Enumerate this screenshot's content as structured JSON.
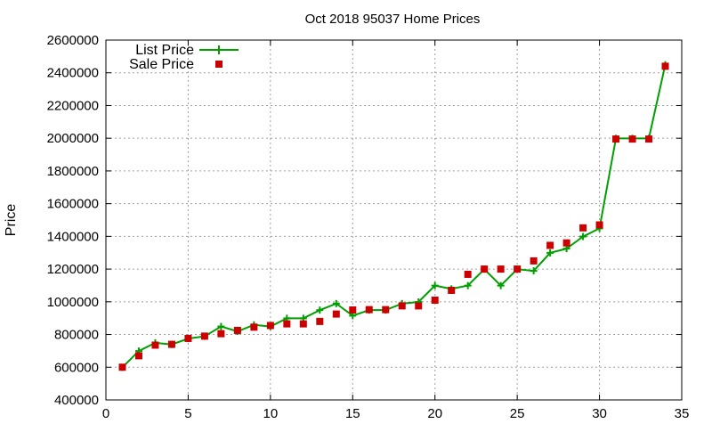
{
  "chart_data": {
    "type": "line",
    "title": "Oct 2018 95037 Home Prices",
    "xlabel": "",
    "ylabel": "Price",
    "xlim": [
      0,
      35
    ],
    "ylim": [
      400000,
      2600000
    ],
    "x_ticks": [
      0,
      5,
      10,
      15,
      20,
      25,
      30,
      35
    ],
    "y_ticks": [
      400000,
      600000,
      800000,
      1000000,
      1200000,
      1400000,
      1600000,
      1800000,
      2000000,
      2200000,
      2400000,
      2600000
    ],
    "grid": true,
    "legend_position": "top-left",
    "x": [
      1,
      2,
      3,
      4,
      5,
      6,
      7,
      8,
      9,
      10,
      11,
      12,
      13,
      14,
      15,
      16,
      17,
      18,
      19,
      20,
      21,
      22,
      23,
      24,
      25,
      26,
      27,
      28,
      29,
      30,
      31,
      32,
      33,
      34
    ],
    "series": [
      {
        "name": "List Price",
        "style": "line-with-plus-markers",
        "color": "#00a000",
        "values": [
          599000,
          699000,
          749000,
          739000,
          775000,
          789000,
          849000,
          819000,
          859000,
          849000,
          899000,
          899000,
          949000,
          989000,
          915000,
          949000,
          949000,
          989000,
          999000,
          1099000,
          1079000,
          1099000,
          1199000,
          1099000,
          1199000,
          1189000,
          1299000,
          1325000,
          1399000,
          1449000,
          1999000,
          1999000,
          1999000,
          2449000
        ]
      },
      {
        "name": "Sale Price",
        "style": "square-markers",
        "color": "#cc0000",
        "values": [
          600000,
          670000,
          735000,
          740000,
          776000,
          790000,
          805000,
          825000,
          845000,
          855000,
          865000,
          865000,
          880000,
          925000,
          950000,
          952000,
          952000,
          975000,
          975000,
          1010000,
          1070000,
          1168000,
          1200000,
          1200000,
          1200000,
          1250000,
          1345000,
          1360000,
          1452000,
          1470000,
          1995000,
          1995000,
          1995000,
          2440000
        ]
      }
    ]
  }
}
